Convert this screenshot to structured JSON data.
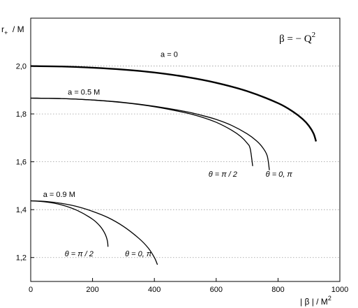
{
  "chart_data": {
    "type": "line",
    "title": "",
    "annotation": {
      "main": "β = − Q",
      "sup": "2"
    },
    "ylabel": {
      "main": "r",
      "sub": "+",
      "rest": "  / M"
    },
    "xlabel": {
      "main": "| β | / M",
      "sup": "2"
    },
    "xlim": [
      0,
      1000
    ],
    "ylim": [
      1.1,
      2.2
    ],
    "xticks": [
      0,
      200,
      400,
      600,
      800,
      1000
    ],
    "yticks": [
      1.2,
      1.4,
      1.6,
      1.8,
      2.0
    ],
    "xtick_labels": [
      "0",
      "200",
      "400",
      "600",
      "800",
      "1000"
    ],
    "ytick_labels": [
      "1,2",
      "1,4",
      "1,6",
      "1,8",
      "2,0"
    ],
    "grid": "horizontal-dotted",
    "series": [
      {
        "label": "a = 0",
        "style": "thick",
        "x": [
          0,
          100,
          200,
          300,
          400,
          500,
          600,
          700,
          800,
          850,
          880,
          900,
          915,
          923
        ],
        "y": [
          2.0,
          1.998,
          1.993,
          1.985,
          1.973,
          1.955,
          1.93,
          1.895,
          1.845,
          1.808,
          1.778,
          1.75,
          1.718,
          1.685
        ]
      },
      {
        "label": "a = 0.5 M",
        "curve_label": "θ = π / 2",
        "style": "thin",
        "x": [
          0,
          100,
          200,
          300,
          400,
          500,
          550,
          600,
          650,
          680,
          700,
          710,
          718
        ],
        "y": [
          1.866,
          1.864,
          1.858,
          1.847,
          1.83,
          1.805,
          1.788,
          1.765,
          1.732,
          1.705,
          1.678,
          1.655,
          1.582
        ]
      },
      {
        "label": "a = 0.5 M",
        "curve_label": "θ = 0, π",
        "style": "thin",
        "x": [
          0,
          100,
          200,
          300,
          400,
          500,
          550,
          600,
          650,
          700,
          730,
          750,
          765,
          772
        ],
        "y": [
          1.866,
          1.864,
          1.858,
          1.848,
          1.832,
          1.81,
          1.795,
          1.777,
          1.752,
          1.717,
          1.688,
          1.66,
          1.625,
          1.565
        ]
      },
      {
        "label": "a = 0.9 M",
        "curve_label": "θ = π / 2",
        "style": "thin",
        "x": [
          0,
          50,
          100,
          150,
          200,
          225,
          240,
          248,
          250
        ],
        "y": [
          1.437,
          1.432,
          1.42,
          1.397,
          1.36,
          1.33,
          1.3,
          1.27,
          1.245
        ]
      },
      {
        "label": "a = 0.9 M",
        "curve_label": "θ = 0, π",
        "style": "thin",
        "x": [
          0,
          50,
          100,
          150,
          200,
          250,
          300,
          350,
          380,
          400,
          410
        ],
        "y": [
          1.437,
          1.434,
          1.426,
          1.413,
          1.393,
          1.367,
          1.33,
          1.28,
          1.24,
          1.2,
          1.17
        ]
      }
    ],
    "labels": [
      {
        "text": "a = 0",
        "x": 420,
        "y": 2.038
      },
      {
        "text": "a = 0.5 M",
        "x": 120,
        "y": 1.88
      },
      {
        "text": "a = 0.9 M",
        "x": 40,
        "y": 1.453
      },
      {
        "text": "θ = π / 2",
        "x": 575,
        "y": 1.537,
        "italic": true
      },
      {
        "text": "θ = 0, π",
        "x": 760,
        "y": 1.537,
        "italic": true
      },
      {
        "text": "θ = π / 2",
        "x": 110,
        "y": 1.205,
        "italic": true
      },
      {
        "text": "θ = 0, π",
        "x": 305,
        "y": 1.205,
        "italic": true
      }
    ]
  }
}
